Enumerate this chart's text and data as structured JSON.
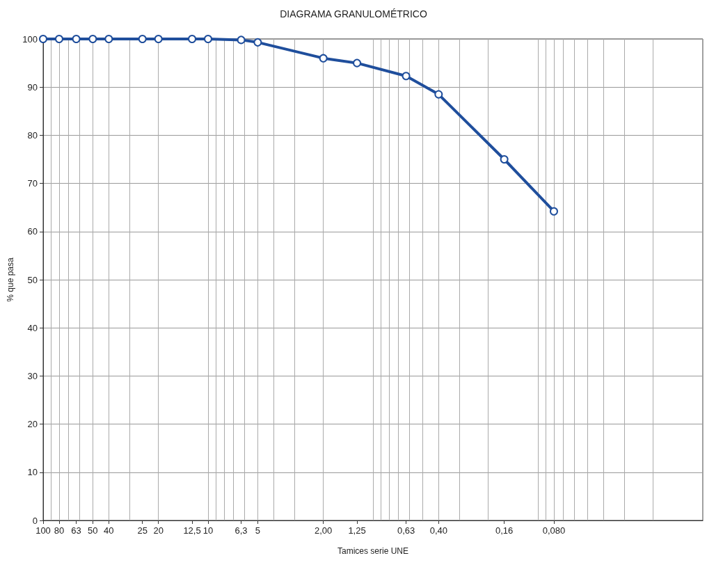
{
  "chart_data": {
    "type": "line",
    "title": "DIAGRAMA GRANULOMÉTRICO",
    "xlabel": "Tamices serie UNE",
    "ylabel": "% que pasa",
    "log": "x",
    "xlim": [
      100,
      0.01
    ],
    "ylim": [
      0,
      100
    ],
    "xticks": [
      100,
      80,
      63,
      50,
      40,
      25,
      20,
      {
        "value": 12.5,
        "label": "12,5"
      },
      10,
      {
        "value": 6.3,
        "label": "6,3"
      },
      5,
      {
        "value": 2,
        "label": "2,00"
      },
      {
        "value": 1.25,
        "label": "1,25"
      },
      {
        "value": 0.63,
        "label": "0,63"
      },
      {
        "value": 0.4,
        "label": "0,40"
      },
      {
        "value": 0.16,
        "label": "0,16"
      },
      {
        "value": 0.08,
        "label": "0,080"
      }
    ],
    "yticks": [
      0,
      10,
      20,
      30,
      40,
      50,
      60,
      70,
      80,
      90,
      100
    ],
    "x": [
      100,
      80,
      63,
      50,
      40,
      25,
      20,
      12.5,
      10,
      6.3,
      5,
      2,
      1.25,
      0.63,
      0.4,
      0.16,
      0.08
    ],
    "series": [
      {
        "color": "#1f4e9c",
        "values": [
          100,
          100,
          100,
          100,
          100,
          100,
          100,
          100,
          100,
          99.8,
          99.3,
          96,
          95,
          92.3,
          88.5,
          75,
          64.2
        ]
      }
    ],
    "marker": "circle",
    "line_style": "solid",
    "grid": true
  }
}
